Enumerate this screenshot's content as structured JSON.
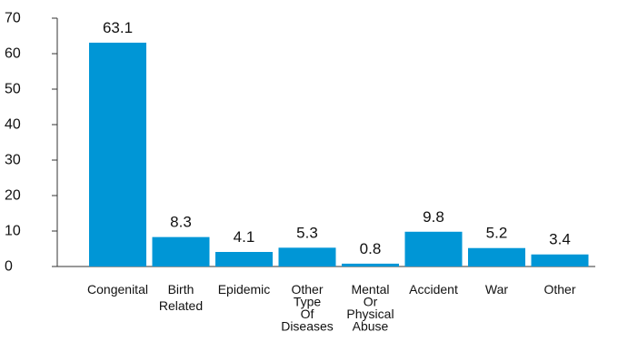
{
  "chart_data": {
    "type": "bar",
    "categories": [
      "Congenital",
      "Birth Related",
      "Epidemic",
      "Other Type Of Diseases",
      "Mental Or Physical Abuse",
      "Accident",
      "War",
      "Other"
    ],
    "category_label_lines": [
      [
        "Congenital"
      ],
      [
        "Birth",
        "Related"
      ],
      [
        "Epidemic"
      ],
      [
        "Other",
        "Type",
        "Of",
        "Diseases"
      ],
      [
        "Mental",
        "Or",
        "Physical",
        "Abuse"
      ],
      [
        "Accident"
      ],
      [
        "War"
      ],
      [
        "Other"
      ]
    ],
    "values": [
      63.1,
      8.3,
      4.1,
      5.3,
      0.8,
      9.8,
      5.2,
      3.4
    ],
    "value_labels": [
      "63.1",
      "8.3",
      "4.1",
      "5.3",
      "0.8",
      "9.8",
      "5.2",
      "3.4"
    ],
    "title": "",
    "xlabel": "",
    "ylabel": "",
    "ylim": [
      0,
      70
    ],
    "yticks": [
      0,
      10,
      20,
      30,
      40,
      50,
      60,
      70
    ],
    "grid": false,
    "bar_color": "#0096d6"
  }
}
